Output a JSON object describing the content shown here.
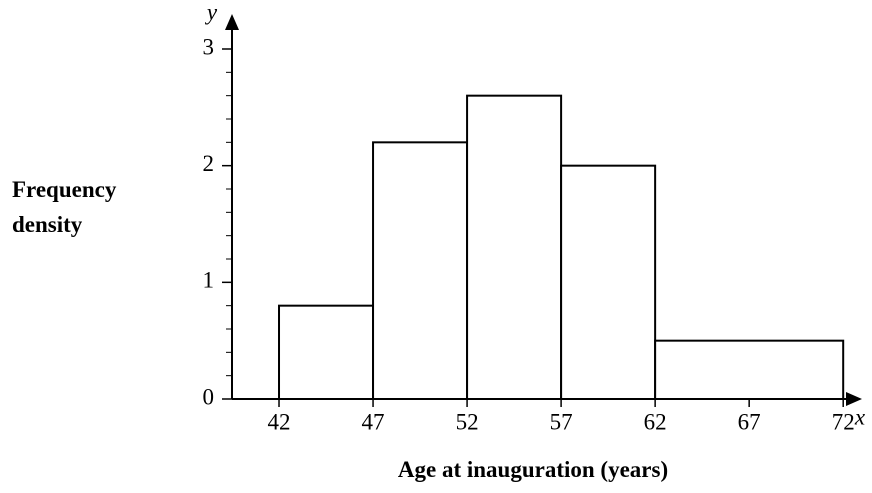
{
  "chart_data": {
    "type": "histogram",
    "bins": [
      42,
      47,
      52,
      57,
      62,
      72
    ],
    "values": [
      0.8,
      2.2,
      2.6,
      2.0,
      0.5
    ],
    "color": "#ffffff",
    "xlim": [
      39.5,
      73
    ],
    "xticks": [
      42,
      47,
      52,
      57,
      62,
      67,
      72
    ],
    "ylim": [
      0,
      3.3
    ],
    "yticks": [
      0,
      1,
      2,
      3
    ],
    "yminorticks": [
      0.2,
      0.4,
      0.6,
      0.8,
      1.2,
      1.4,
      1.6,
      1.8,
      2.2,
      2.4,
      2.6,
      2.8
    ],
    "xaxis_symbol": "x",
    "yaxis_symbol": "y",
    "xlabel": "Age at inauguration (years)",
    "ylabel": "Frequency density"
  }
}
